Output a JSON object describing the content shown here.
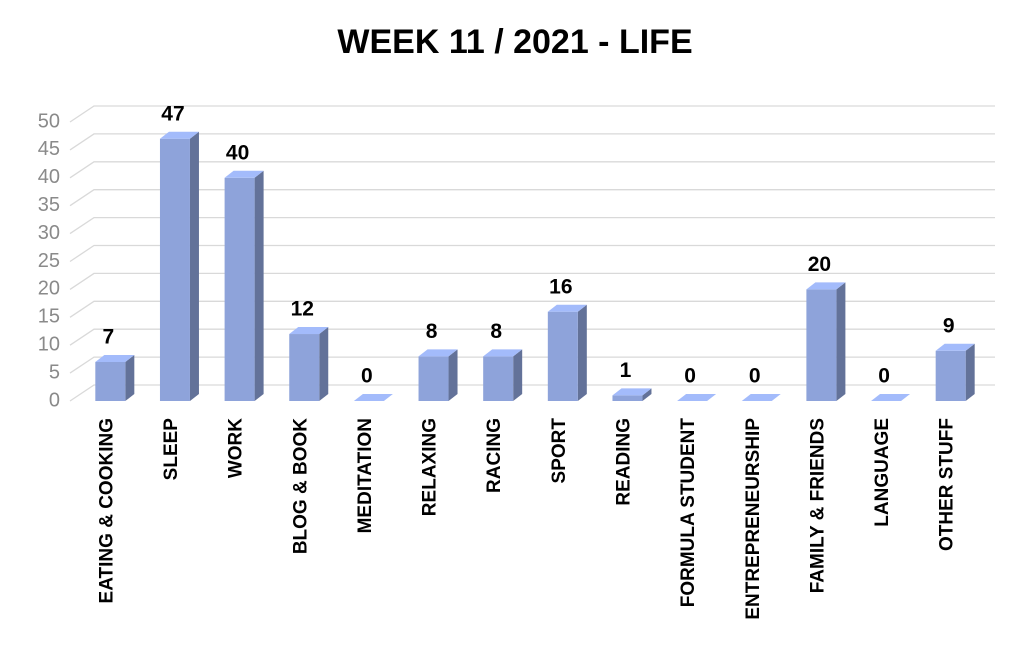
{
  "chart_data": {
    "type": "bar",
    "title": "WEEK 11  / 2021 - LIFE",
    "categories": [
      "EATING & COOKING",
      "SLEEP",
      "WORK",
      "BLOG & BOOK",
      "MEDITATION",
      "RELAXING",
      "RACING",
      "SPORT",
      "READING",
      "FORMULA STUDENT",
      "ENTREPRENEURSHIP",
      "FAMILY & FRIENDS",
      "LANGUAGE",
      "OTHER STUFF"
    ],
    "values": [
      7,
      47,
      40,
      12,
      0,
      8,
      8,
      16,
      1,
      0,
      0,
      20,
      0,
      9
    ],
    "color": "#8ea3da",
    "ylim": [
      0,
      50
    ],
    "yticks": [
      0,
      5,
      10,
      15,
      20,
      25,
      30,
      35,
      40,
      45,
      50
    ],
    "grid": true
  }
}
